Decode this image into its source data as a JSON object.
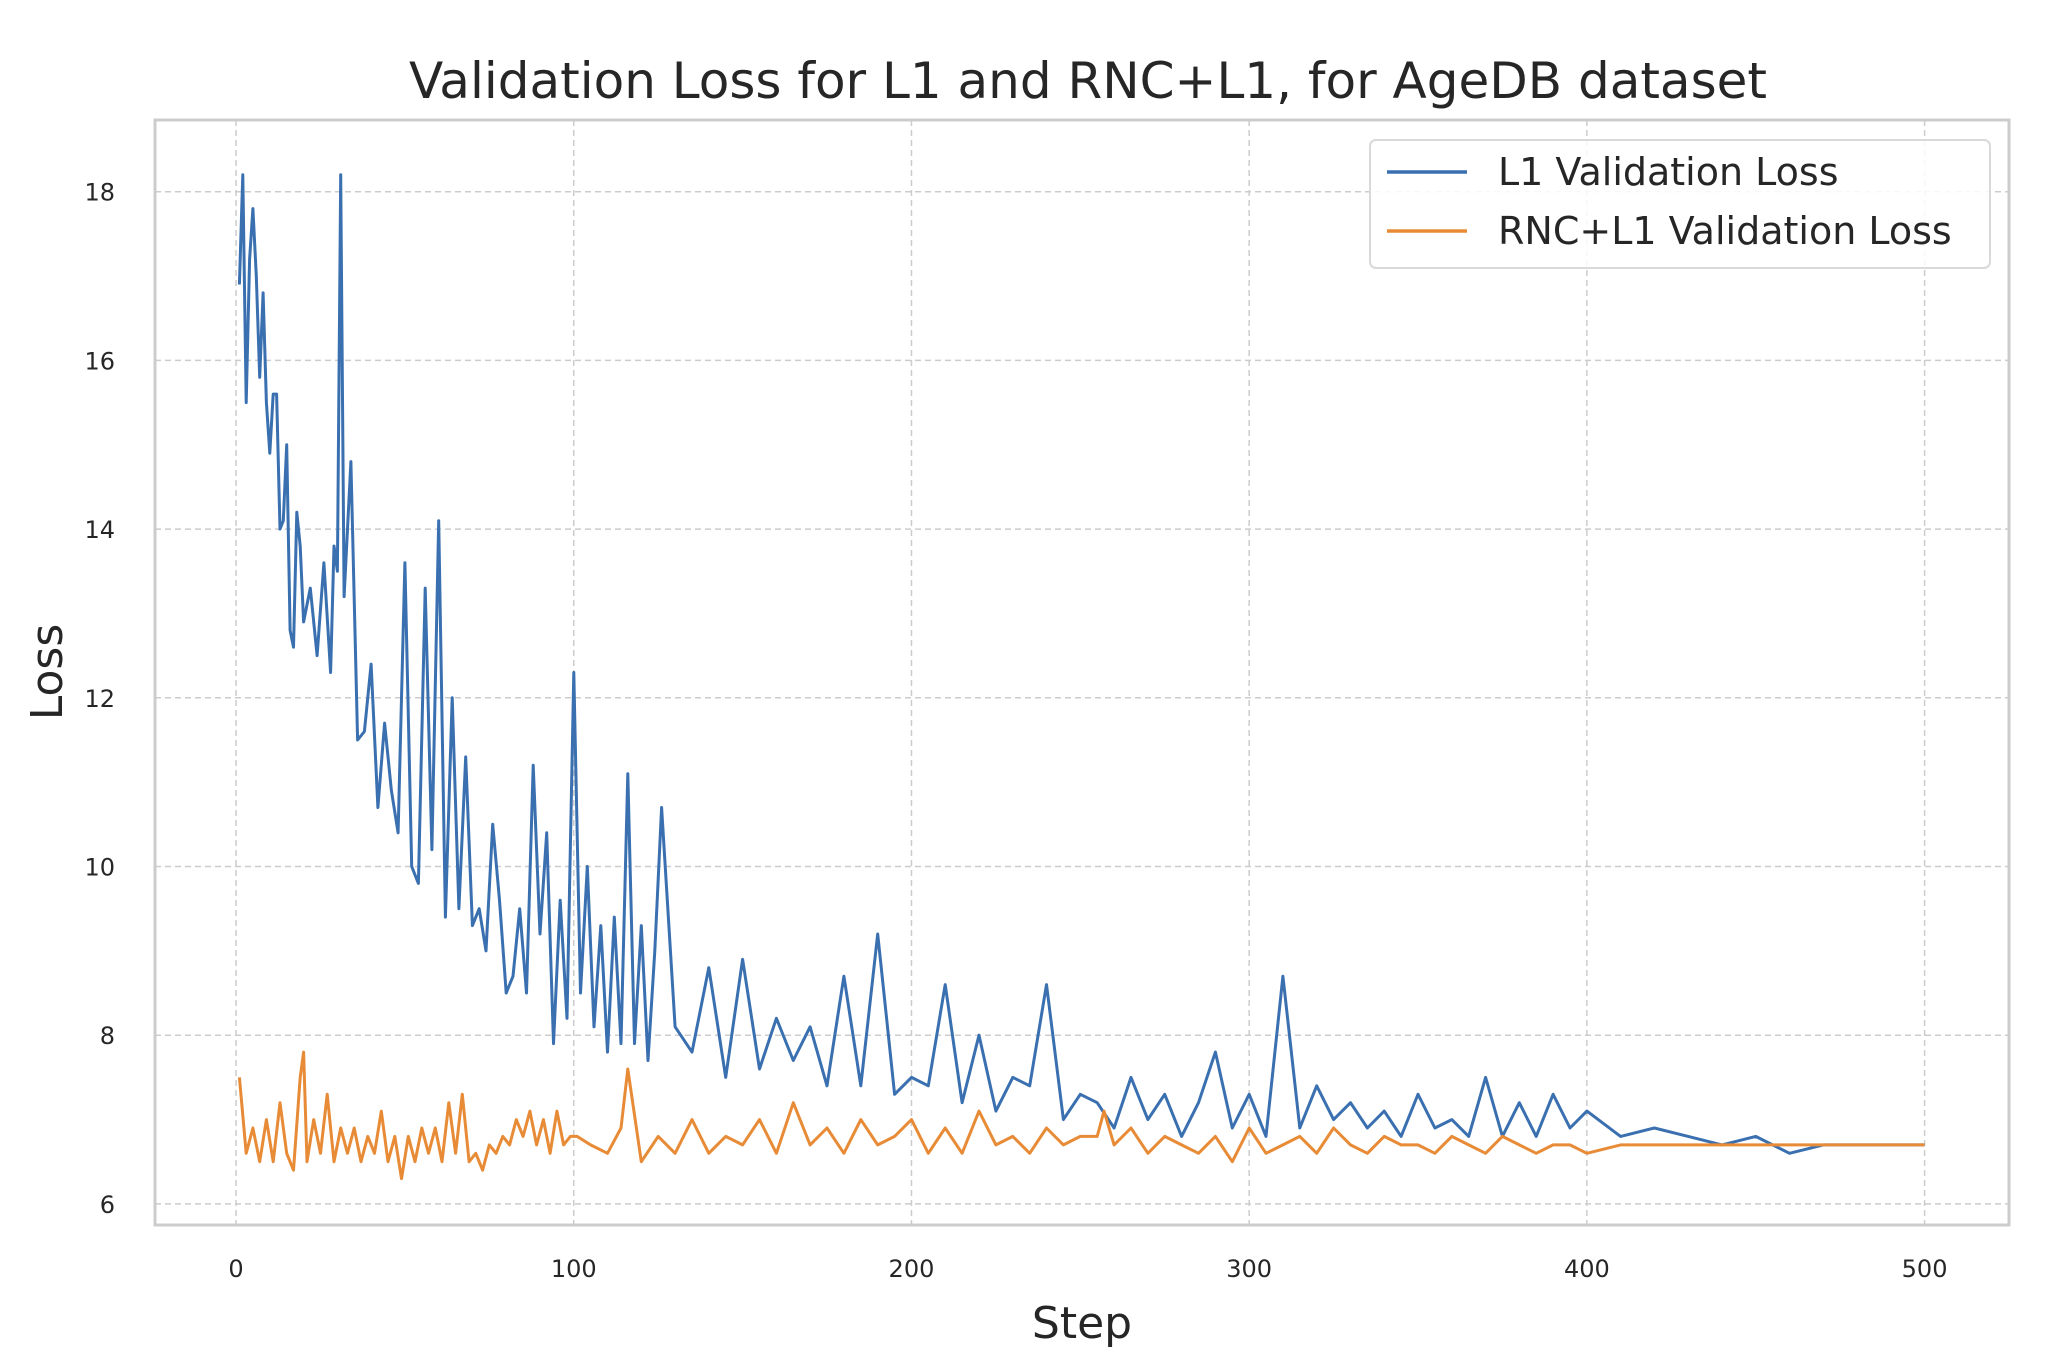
{
  "chart_data": {
    "type": "line",
    "title": "Validation Loss for L1 and RNC+L1, for AgeDB dataset",
    "xlabel": "Step",
    "ylabel": "Loss",
    "xlim": [
      -24,
      525
    ],
    "ylim": [
      5.75,
      18.85
    ],
    "xticks": [
      0,
      100,
      200,
      300,
      400,
      500
    ],
    "yticks": [
      6,
      8,
      10,
      12,
      14,
      16,
      18
    ],
    "grid": true,
    "legend_position": "top-right",
    "series": [
      {
        "name": "L1 Validation Loss",
        "color": "#3a70b0",
        "x": [
          1,
          2,
          3,
          4,
          5,
          6,
          7,
          8,
          9,
          10,
          11,
          12,
          13,
          14,
          15,
          16,
          17,
          18,
          19,
          20,
          22,
          24,
          26,
          28,
          29,
          30,
          31,
          32,
          34,
          36,
          38,
          40,
          42,
          44,
          46,
          48,
          50,
          52,
          54,
          56,
          58,
          60,
          62,
          64,
          66,
          68,
          70,
          72,
          74,
          76,
          78,
          80,
          82,
          84,
          86,
          88,
          90,
          92,
          94,
          96,
          98,
          100,
          102,
          104,
          106,
          108,
          110,
          112,
          114,
          116,
          118,
          120,
          122,
          124,
          126,
          130,
          135,
          140,
          145,
          150,
          155,
          160,
          165,
          170,
          175,
          180,
          185,
          190,
          195,
          200,
          205,
          210,
          215,
          220,
          225,
          230,
          235,
          240,
          245,
          250,
          255,
          260,
          265,
          270,
          275,
          280,
          285,
          290,
          295,
          300,
          305,
          310,
          315,
          320,
          325,
          330,
          335,
          340,
          345,
          350,
          355,
          360,
          365,
          370,
          375,
          380,
          385,
          390,
          395,
          400,
          410,
          420,
          430,
          440,
          450,
          460,
          470,
          480,
          490,
          500
        ],
        "y": [
          16.9,
          18.2,
          15.5,
          17.2,
          17.8,
          17.0,
          15.8,
          16.8,
          15.5,
          14.9,
          15.6,
          15.6,
          14.0,
          14.1,
          15.0,
          12.8,
          12.6,
          14.2,
          13.8,
          12.9,
          13.3,
          12.5,
          13.6,
          12.3,
          13.8,
          13.5,
          18.2,
          13.2,
          14.8,
          11.5,
          11.6,
          12.4,
          10.7,
          11.7,
          10.9,
          10.4,
          13.6,
          10.0,
          9.8,
          13.3,
          10.2,
          14.1,
          9.4,
          12.0,
          9.5,
          11.3,
          9.3,
          9.5,
          9.0,
          10.5,
          9.6,
          8.5,
          8.7,
          9.5,
          8.5,
          11.2,
          9.2,
          10.4,
          7.9,
          9.6,
          8.2,
          12.3,
          8.5,
          10.0,
          8.1,
          9.3,
          7.8,
          9.4,
          7.9,
          11.1,
          7.9,
          9.3,
          7.7,
          9.0,
          10.7,
          8.1,
          7.8,
          8.8,
          7.5,
          8.9,
          7.6,
          8.2,
          7.7,
          8.1,
          7.4,
          8.7,
          7.4,
          9.2,
          7.3,
          7.5,
          7.4,
          8.6,
          7.2,
          8.0,
          7.1,
          7.5,
          7.4,
          8.6,
          7.0,
          7.3,
          7.2,
          6.9,
          7.5,
          7.0,
          7.3,
          6.8,
          7.2,
          7.8,
          6.9,
          7.3,
          6.8,
          8.7,
          6.9,
          7.4,
          7.0,
          7.2,
          6.9,
          7.1,
          6.8,
          7.3,
          6.9,
          7.0,
          6.8,
          7.5,
          6.8,
          7.2,
          6.8,
          7.3,
          6.9,
          7.1,
          6.8,
          6.9,
          6.8,
          6.7,
          6.8,
          6.6,
          6.7,
          6.7,
          6.7,
          6.7
        ]
      },
      {
        "name": "RNC+L1 Validation Loss",
        "color": "#e88b36",
        "x": [
          1,
          3,
          5,
          7,
          9,
          11,
          13,
          15,
          17,
          19,
          20,
          21,
          23,
          25,
          27,
          29,
          31,
          33,
          35,
          37,
          39,
          41,
          43,
          45,
          47,
          49,
          51,
          53,
          55,
          57,
          59,
          61,
          63,
          65,
          67,
          69,
          71,
          73,
          75,
          77,
          79,
          81,
          83,
          85,
          87,
          89,
          91,
          93,
          95,
          97,
          99,
          101,
          105,
          110,
          114,
          116,
          120,
          125,
          130,
          135,
          140,
          145,
          150,
          155,
          160,
          165,
          170,
          175,
          180,
          185,
          190,
          195,
          200,
          205,
          210,
          215,
          220,
          225,
          230,
          235,
          240,
          245,
          250,
          255,
          257,
          260,
          265,
          270,
          275,
          280,
          285,
          290,
          295,
          300,
          305,
          310,
          315,
          320,
          325,
          330,
          335,
          340,
          345,
          350,
          355,
          360,
          365,
          370,
          375,
          380,
          385,
          390,
          395,
          400,
          410,
          420,
          430,
          440,
          450,
          460,
          470,
          480,
          490,
          500
        ],
        "y": [
          7.5,
          6.6,
          6.9,
          6.5,
          7.0,
          6.5,
          7.2,
          6.6,
          6.4,
          7.5,
          7.8,
          6.5,
          7.0,
          6.6,
          7.3,
          6.5,
          6.9,
          6.6,
          6.9,
          6.5,
          6.8,
          6.6,
          7.1,
          6.5,
          6.8,
          6.3,
          6.8,
          6.5,
          6.9,
          6.6,
          6.9,
          6.5,
          7.2,
          6.6,
          7.3,
          6.5,
          6.6,
          6.4,
          6.7,
          6.6,
          6.8,
          6.7,
          7.0,
          6.8,
          7.1,
          6.7,
          7.0,
          6.6,
          7.1,
          6.7,
          6.8,
          6.8,
          6.7,
          6.6,
          6.9,
          7.6,
          6.5,
          6.8,
          6.6,
          7.0,
          6.6,
          6.8,
          6.7,
          7.0,
          6.6,
          7.2,
          6.7,
          6.9,
          6.6,
          7.0,
          6.7,
          6.8,
          7.0,
          6.6,
          6.9,
          6.6,
          7.1,
          6.7,
          6.8,
          6.6,
          6.9,
          6.7,
          6.8,
          6.8,
          7.1,
          6.7,
          6.9,
          6.6,
          6.8,
          6.7,
          6.6,
          6.8,
          6.5,
          6.9,
          6.6,
          6.7,
          6.8,
          6.6,
          6.9,
          6.7,
          6.6,
          6.8,
          6.7,
          6.7,
          6.6,
          6.8,
          6.7,
          6.6,
          6.8,
          6.7,
          6.6,
          6.7,
          6.7,
          6.6,
          6.7,
          6.7,
          6.7,
          6.7,
          6.7,
          6.7,
          6.7,
          6.7,
          6.7,
          6.7
        ]
      }
    ]
  }
}
